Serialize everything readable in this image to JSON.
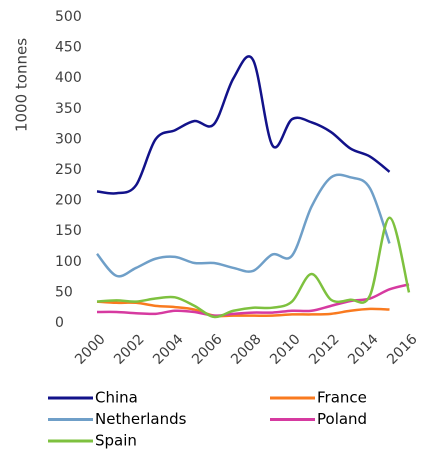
{
  "chart_data": {
    "type": "line",
    "y_label": "1000 tonnes",
    "x": [
      2000,
      2001,
      2002,
      2003,
      2004,
      2005,
      2006,
      2007,
      2008,
      2009,
      2010,
      2011,
      2012,
      2013,
      2014,
      2015,
      2016
    ],
    "xlim": [
      2000,
      2016
    ],
    "xticks": [
      2000,
      2002,
      2004,
      2006,
      2008,
      2010,
      2012,
      2014,
      2016
    ],
    "ylim": [
      0,
      500
    ],
    "yticks": [
      0,
      50,
      100,
      150,
      200,
      250,
      300,
      350,
      400,
      450,
      500
    ],
    "grid": false,
    "legend": "bottom",
    "series": [
      {
        "name": "China",
        "color": "#12128a",
        "values": [
          215,
          212,
          225,
          300,
          315,
          330,
          325,
          400,
          430,
          290,
          333,
          328,
          312,
          285,
          272,
          247,
          null
        ]
      },
      {
        "name": "France",
        "color": "#f97a1f",
        "values": [
          35,
          33,
          33,
          28,
          26,
          22,
          12,
          12,
          12,
          12,
          14,
          14,
          15,
          20,
          23,
          22,
          null
        ]
      },
      {
        "name": "Netherlands",
        "color": "#6f9fc8",
        "values": [
          113,
          77,
          90,
          105,
          108,
          98,
          98,
          90,
          85,
          112,
          110,
          190,
          238,
          238,
          220,
          130,
          null
        ]
      },
      {
        "name": "Poland",
        "color": "#d63aa0",
        "values": [
          18,
          18,
          16,
          15,
          20,
          18,
          12,
          15,
          17,
          17,
          20,
          20,
          28,
          36,
          40,
          55,
          63
        ]
      },
      {
        "name": "Spain",
        "color": "#7ec13f",
        "values": [
          35,
          37,
          35,
          40,
          42,
          28,
          10,
          20,
          25,
          25,
          35,
          80,
          38,
          38,
          45,
          172,
          50
        ]
      }
    ]
  }
}
